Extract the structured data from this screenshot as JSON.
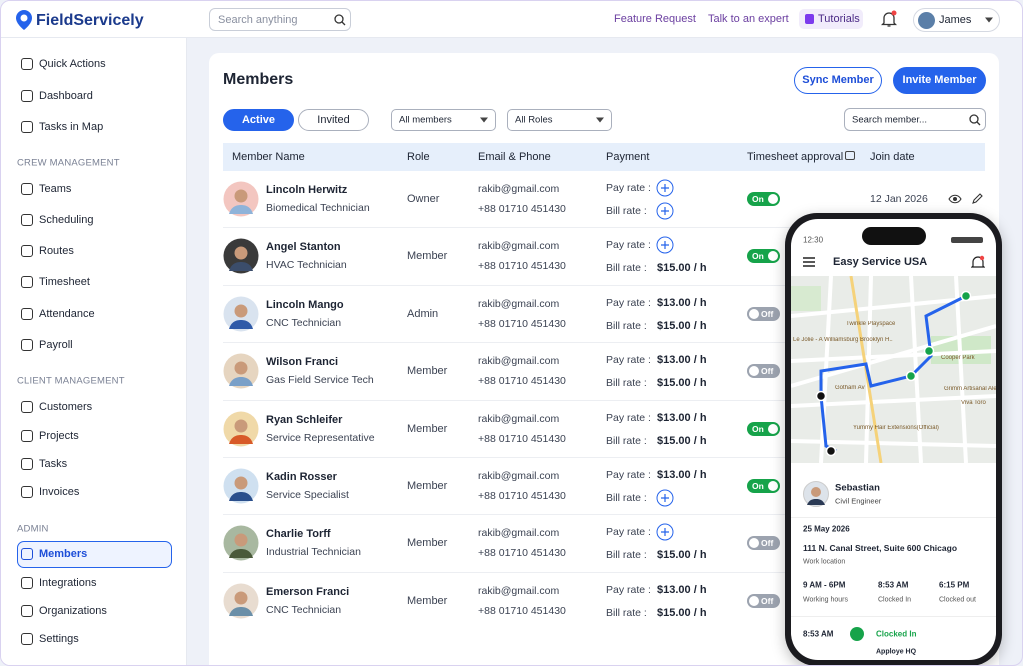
{
  "header": {
    "logo": "FieldServicely",
    "search_placeholder": "Search anything",
    "links": [
      "Feature Request",
      "Talk to an expert",
      "Tutorials"
    ],
    "user": "James"
  },
  "sidebar": {
    "top_items": [
      "Quick Actions",
      "Dashboard",
      "Tasks in Map"
    ],
    "groups": [
      {
        "title": "CREW MANAGEMENT",
        "items": [
          "Teams",
          "Scheduling",
          "Routes",
          "Timesheet",
          "Attendance",
          "Payroll"
        ]
      },
      {
        "title": "CLIENT MANAGEMENT",
        "items": [
          "Customers",
          "Projects",
          "Tasks",
          "Invoices"
        ]
      },
      {
        "title": "ADMIN",
        "items": [
          "Members",
          "Integrations",
          "Organizations",
          "Settings"
        ],
        "active_index": 0
      }
    ]
  },
  "main": {
    "title": "Members",
    "buttons": [
      "Sync Member",
      "Invite Member"
    ],
    "tabs": [
      "Active",
      "Invited"
    ],
    "active_tab": 0,
    "filters": [
      "All members",
      "All Roles"
    ],
    "search_placeholder": "Search member..."
  },
  "table": {
    "columns": [
      "Member Name",
      "Role",
      "Email & Phone",
      "Payment",
      "Timesheet approval",
      "Join date"
    ],
    "pay_label": "Pay rate :",
    "bill_label": "Bill rate :",
    "rows": [
      {
        "name": "Lincoln Herwitz",
        "title": "Biomedical Technician",
        "role": "Owner",
        "email": "rakib@gmail.com",
        "phone": "+88 01710 451430",
        "pay_rate": null,
        "bill_rate": null,
        "timesheet": "On",
        "join_date": "12 Jan 2026"
      },
      {
        "name": "Angel Stanton",
        "title": "HVAC Technician",
        "role": "Member",
        "email": "rakib@gmail.com",
        "phone": "+88 01710 451430",
        "pay_rate": null,
        "bill_rate": "$15.00 / h",
        "timesheet": "On"
      },
      {
        "name": "Lincoln Mango",
        "title": "CNC Technician",
        "role": "Admin",
        "email": "rakib@gmail.com",
        "phone": "+88 01710 451430",
        "pay_rate": "$13.00 / h",
        "bill_rate": "$15.00 / h",
        "timesheet": "Off"
      },
      {
        "name": "Wilson Franci",
        "title": "Gas Field Service Tech",
        "role": "Member",
        "email": "rakib@gmail.com",
        "phone": "+88 01710 451430",
        "pay_rate": "$13.00 / h",
        "bill_rate": "$15.00 / h",
        "timesheet": "Off"
      },
      {
        "name": "Ryan Schleifer",
        "title": "Service Representative",
        "role": "Member",
        "email": "rakib@gmail.com",
        "phone": "+88 01710 451430",
        "pay_rate": "$13.00 / h",
        "bill_rate": "$15.00 / h",
        "timesheet": "On"
      },
      {
        "name": "Kadin Rosser",
        "title": "Service Specialist",
        "role": "Member",
        "email": "rakib@gmail.com",
        "phone": "+88 01710 451430",
        "pay_rate": "$13.00 / h",
        "bill_rate": null,
        "timesheet": "On"
      },
      {
        "name": "Charlie Torff",
        "title": "Industrial Technician",
        "role": "Member",
        "email": "rakib@gmail.com",
        "phone": "+88 01710 451430",
        "pay_rate": null,
        "bill_rate": "$15.00 / h",
        "timesheet": "Off"
      },
      {
        "name": "Emerson Franci",
        "title": "CNC Technician",
        "role": "Member",
        "email": "rakib@gmail.com",
        "phone": "+88 01710 451430",
        "pay_rate": "$13.00 / h",
        "bill_rate": "$15.00 / h",
        "timesheet": "Off"
      }
    ]
  },
  "phone": {
    "time": "12:30",
    "app_title": "Easy Service USA",
    "map_labels": [
      "Twinkle Playspace",
      "Le Jolie - A Williamsburg Brooklyn H...",
      "Gotham Av",
      "Grimm Artisanal Ales",
      "Viva Toro",
      "Yummy Hair Extensions(Official)",
      "Cooper Park"
    ],
    "employee": {
      "name": "Sebastian",
      "title": "Civil Engineer"
    },
    "date": "25 May 2026",
    "address": "111 N. Canal Street, Suite 600 Chicago",
    "address_label": "Work location",
    "stats": [
      {
        "value": "9 AM - 6PM",
        "label": "Working hours"
      },
      {
        "value": "8:53 AM",
        "label": "Clocked In"
      },
      {
        "value": "6:15 PM",
        "label": "Clocked out"
      }
    ],
    "clock_event": {
      "time": "8:53 AM",
      "status": "Clocked In",
      "place": "Apploye HQ"
    }
  }
}
